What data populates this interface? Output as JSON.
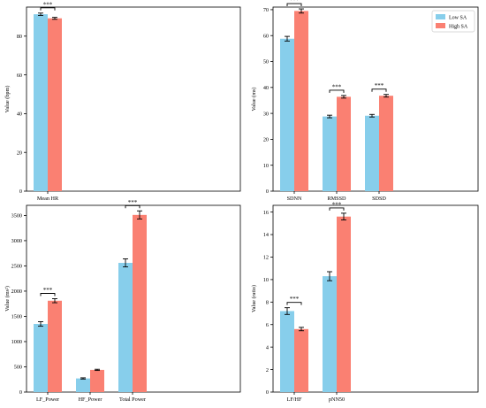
{
  "colors": {
    "low": "#87CEEB",
    "high": "#FA8072",
    "axis": "#000000"
  },
  "legend": {
    "placement": "top-right",
    "entries": [
      "Low SA",
      "High SA"
    ]
  },
  "significance_label": "***",
  "chart_data": [
    {
      "type": "bar",
      "title": "",
      "ylabel": "Value (bpm)",
      "ylim": [
        0,
        95
      ],
      "yticks": [
        0,
        20,
        40,
        60,
        80
      ],
      "categories": [
        "Mean HR"
      ],
      "grid": false,
      "series": [
        {
          "name": "Low SA",
          "values": [
            91.3
          ],
          "errors": [
            0.6
          ]
        },
        {
          "name": "High SA",
          "values": [
            89.2
          ],
          "errors": [
            0.5
          ]
        }
      ],
      "significant": [
        true
      ]
    },
    {
      "type": "bar",
      "title": "",
      "ylabel": "Value (ms)",
      "ylim": [
        0,
        71
      ],
      "yticks": [
        0,
        10,
        20,
        30,
        40,
        50,
        60,
        70
      ],
      "categories": [
        "SDNN",
        "RMSSD",
        "SDSD"
      ],
      "grid": false,
      "legend": true,
      "series": [
        {
          "name": "Low SA",
          "values": [
            58.8,
            28.8,
            29.1
          ],
          "errors": [
            0.9,
            0.5,
            0.5
          ]
        },
        {
          "name": "High SA",
          "values": [
            69.5,
            36.4,
            36.8
          ],
          "errors": [
            0.8,
            0.5,
            0.5
          ]
        }
      ],
      "significant": [
        true,
        true,
        true
      ]
    },
    {
      "type": "bar",
      "title": "",
      "ylabel": "Value (ms²)",
      "ylim": [
        0,
        3700
      ],
      "yticks": [
        0,
        500,
        1000,
        1500,
        2000,
        2500,
        3000,
        3500
      ],
      "categories": [
        "LF_Power",
        "HF_Power",
        "Total Power"
      ],
      "grid": false,
      "series": [
        {
          "name": "Low SA",
          "values": [
            1350,
            270,
            2560
          ],
          "errors": [
            45,
            12,
            80
          ]
        },
        {
          "name": "High SA",
          "values": [
            1810,
            440,
            3510
          ],
          "errors": [
            40,
            12,
            80
          ]
        }
      ],
      "significant": [
        true,
        false,
        true
      ]
    },
    {
      "type": "bar",
      "title": "",
      "ylabel": "Value (ratio)",
      "ylim": [
        0,
        16.6
      ],
      "yticks": [
        0,
        2,
        4,
        6,
        8,
        10,
        12,
        14,
        16
      ],
      "categories": [
        "LF/HF",
        "pNN50"
      ],
      "grid": false,
      "series": [
        {
          "name": "Low SA",
          "values": [
            7.2,
            10.3
          ],
          "errors": [
            0.3,
            0.4
          ]
        },
        {
          "name": "High SA",
          "values": [
            5.6,
            15.6
          ],
          "errors": [
            0.15,
            0.3
          ]
        }
      ],
      "significant": [
        true,
        true
      ]
    }
  ]
}
